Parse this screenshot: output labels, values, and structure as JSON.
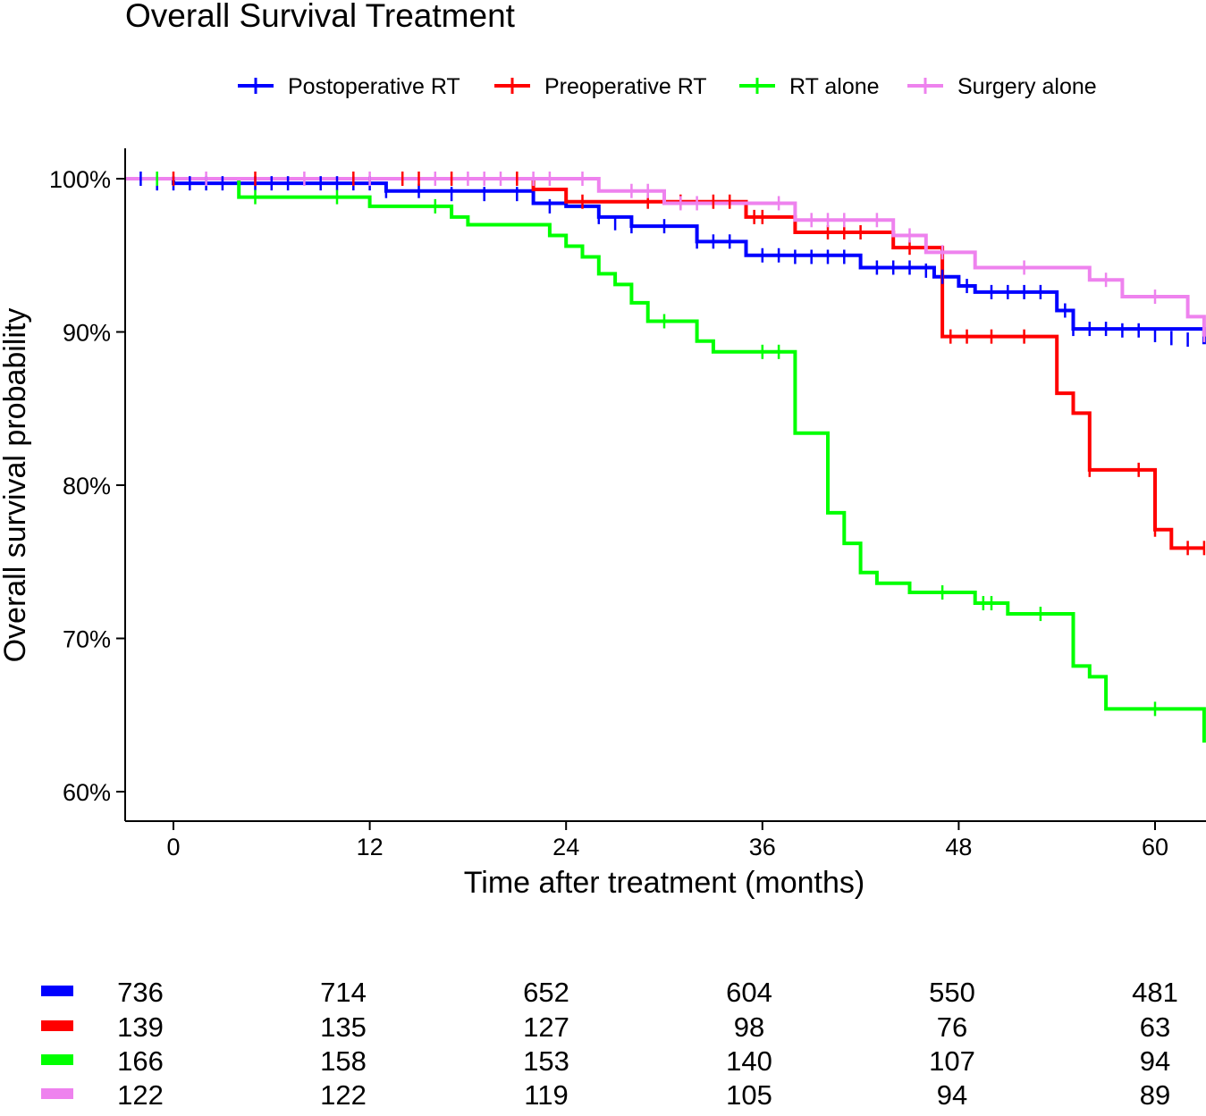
{
  "chart_data": {
    "type": "line",
    "subtype": "kaplan-meier",
    "title": "Overall Survival Treatment",
    "xlabel": "Time after treatment (months)",
    "ylabel": "Overall survival probability",
    "xlim": [
      -3,
      63
    ],
    "ylim": [
      58,
      102
    ],
    "xticks": [
      0,
      12,
      24,
      36,
      48,
      60
    ],
    "yticks": [
      60,
      70,
      80,
      90,
      100
    ],
    "ytick_labels": [
      "60%",
      "70%",
      "80%",
      "90%",
      "100%"
    ],
    "legend_position": "top",
    "grid": false,
    "series": [
      {
        "name": "Postoperative RT",
        "color": "#0000ff",
        "steps": [
          [
            -3,
            100
          ],
          [
            0,
            99.7
          ],
          [
            12,
            99.7
          ],
          [
            13,
            99.2
          ],
          [
            22,
            98.4
          ],
          [
            24,
            98.2
          ],
          [
            26,
            97.5
          ],
          [
            28,
            96.9
          ],
          [
            32,
            95.9
          ],
          [
            35,
            95.0
          ],
          [
            42,
            94.2
          ],
          [
            46.5,
            93.6
          ],
          [
            48,
            93.0
          ],
          [
            49,
            92.6
          ],
          [
            54,
            91.4
          ],
          [
            55,
            90.2
          ],
          [
            63,
            89.2
          ]
        ],
        "censors": [
          [
            -2,
            100
          ],
          [
            -1,
            99.7
          ],
          [
            0,
            99.7
          ],
          [
            1,
            99.7
          ],
          [
            2,
            99.7
          ],
          [
            3,
            99.7
          ],
          [
            5,
            99.7
          ],
          [
            6,
            99.7
          ],
          [
            7,
            99.7
          ],
          [
            9,
            99.7
          ],
          [
            10,
            99.7
          ],
          [
            11,
            99.7
          ],
          [
            12,
            99.7
          ],
          [
            13,
            99.2
          ],
          [
            15,
            99.2
          ],
          [
            17,
            99.0
          ],
          [
            19,
            99.0
          ],
          [
            21,
            99.0
          ],
          [
            23,
            98.2
          ],
          [
            26,
            97.5
          ],
          [
            27,
            97.1
          ],
          [
            28,
            96.9
          ],
          [
            30,
            96.9
          ],
          [
            32,
            95.9
          ],
          [
            33,
            95.9
          ],
          [
            34,
            95.9
          ],
          [
            36,
            95.0
          ],
          [
            37,
            95.0
          ],
          [
            38,
            94.9
          ],
          [
            39,
            94.9
          ],
          [
            40,
            94.9
          ],
          [
            41,
            94.9
          ],
          [
            43,
            94.2
          ],
          [
            44,
            94.2
          ],
          [
            45,
            94.2
          ],
          [
            46,
            94.0
          ],
          [
            47,
            93.6
          ],
          [
            48.5,
            93.0
          ],
          [
            50,
            92.6
          ],
          [
            51,
            92.6
          ],
          [
            52,
            92.6
          ],
          [
            53,
            92.6
          ],
          [
            54.5,
            91.4
          ],
          [
            55,
            90.2
          ],
          [
            56,
            90.2
          ],
          [
            57,
            90.2
          ],
          [
            58,
            90.1
          ],
          [
            59,
            90.1
          ],
          [
            60,
            89.8
          ],
          [
            61,
            89.6
          ],
          [
            62,
            89.5
          ]
        ]
      },
      {
        "name": "Preoperative RT",
        "color": "#ff0000",
        "steps": [
          [
            -3,
            100
          ],
          [
            22,
            99.3
          ],
          [
            24,
            98.5
          ],
          [
            35,
            97.5
          ],
          [
            38,
            96.5
          ],
          [
            44,
            95.5
          ],
          [
            47,
            89.7
          ],
          [
            54,
            86.0
          ],
          [
            55,
            84.7
          ],
          [
            56,
            81.0
          ],
          [
            60,
            77.1
          ],
          [
            61,
            75.9
          ],
          [
            63,
            75.9
          ]
        ],
        "censors": [
          [
            0,
            100
          ],
          [
            5,
            100
          ],
          [
            11,
            100
          ],
          [
            14,
            100
          ],
          [
            15,
            100
          ],
          [
            17,
            100
          ],
          [
            21,
            100
          ],
          [
            25,
            98.5
          ],
          [
            29,
            98.5
          ],
          [
            31,
            98.5
          ],
          [
            33,
            98.5
          ],
          [
            34,
            98.5
          ],
          [
            35.5,
            97.5
          ],
          [
            36,
            97.5
          ],
          [
            40,
            96.5
          ],
          [
            41,
            96.5
          ],
          [
            42,
            96.5
          ],
          [
            45,
            95.5
          ],
          [
            47.5,
            89.7
          ],
          [
            48.5,
            89.7
          ],
          [
            50,
            89.7
          ],
          [
            52,
            89.7
          ],
          [
            56,
            81.0
          ],
          [
            59,
            81.0
          ],
          [
            60,
            77.1
          ],
          [
            62,
            75.9
          ],
          [
            63,
            75.9
          ]
        ]
      },
      {
        "name": "RT alone",
        "color": "#00ff00",
        "steps": [
          [
            -3,
            100
          ],
          [
            4,
            98.8
          ],
          [
            12,
            98.2
          ],
          [
            17,
            97.5
          ],
          [
            18,
            97.0
          ],
          [
            23,
            96.3
          ],
          [
            24,
            95.6
          ],
          [
            25,
            94.9
          ],
          [
            26,
            93.8
          ],
          [
            27,
            93.1
          ],
          [
            28,
            91.9
          ],
          [
            29,
            90.7
          ],
          [
            32,
            89.4
          ],
          [
            33,
            88.7
          ],
          [
            38,
            83.4
          ],
          [
            40,
            78.2
          ],
          [
            41,
            76.2
          ],
          [
            42,
            74.3
          ],
          [
            43,
            73.6
          ],
          [
            45,
            73.0
          ],
          [
            49,
            72.3
          ],
          [
            51,
            71.6
          ],
          [
            55,
            68.2
          ],
          [
            56,
            67.5
          ],
          [
            57,
            65.4
          ],
          [
            63,
            63.2
          ]
        ],
        "censors": [
          [
            -1,
            100
          ],
          [
            5,
            98.8
          ],
          [
            10,
            98.8
          ],
          [
            16,
            98.2
          ],
          [
            30,
            90.7
          ],
          [
            36,
            88.7
          ],
          [
            37,
            88.7
          ],
          [
            47,
            73.0
          ],
          [
            49.5,
            72.3
          ],
          [
            50,
            72.3
          ],
          [
            53,
            71.6
          ],
          [
            60,
            65.4
          ]
        ]
      },
      {
        "name": "Surgery alone",
        "color": "#ee82ee",
        "steps": [
          [
            -3,
            100
          ],
          [
            26,
            99.2
          ],
          [
            30,
            98.4
          ],
          [
            38,
            97.3
          ],
          [
            44,
            96.3
          ],
          [
            46,
            95.2
          ],
          [
            49,
            94.2
          ],
          [
            56,
            93.4
          ],
          [
            58,
            92.3
          ],
          [
            62,
            91.0
          ],
          [
            63,
            89.7
          ]
        ],
        "censors": [
          [
            2,
            100
          ],
          [
            8,
            100
          ],
          [
            12,
            100
          ],
          [
            16,
            100
          ],
          [
            18,
            100
          ],
          [
            19,
            100
          ],
          [
            20,
            100
          ],
          [
            22,
            100
          ],
          [
            23,
            100
          ],
          [
            25,
            100
          ],
          [
            28,
            99.2
          ],
          [
            29,
            99.2
          ],
          [
            31,
            98.4
          ],
          [
            32,
            98.4
          ],
          [
            37,
            98.4
          ],
          [
            39,
            97.3
          ],
          [
            40,
            97.3
          ],
          [
            41,
            97.3
          ],
          [
            43,
            97.3
          ],
          [
            45,
            96.3
          ],
          [
            47,
            95.2
          ],
          [
            52,
            94.2
          ],
          [
            57,
            93.4
          ],
          [
            60,
            92.3
          ],
          [
            63,
            89.8
          ]
        ]
      }
    ],
    "risk_table": {
      "times": [
        0,
        12,
        24,
        36,
        48,
        60
      ],
      "rows": [
        {
          "name": "Postoperative RT",
          "color": "#0000ff",
          "counts": [
            736,
            714,
            652,
            604,
            550,
            481
          ]
        },
        {
          "name": "Preoperative RT",
          "color": "#ff0000",
          "counts": [
            139,
            135,
            127,
            98,
            76,
            63
          ]
        },
        {
          "name": "RT alone",
          "color": "#00ff00",
          "counts": [
            166,
            158,
            153,
            140,
            107,
            94
          ]
        },
        {
          "name": "Surgery alone",
          "color": "#ee82ee",
          "counts": [
            122,
            122,
            119,
            105,
            94,
            89
          ]
        }
      ]
    }
  }
}
